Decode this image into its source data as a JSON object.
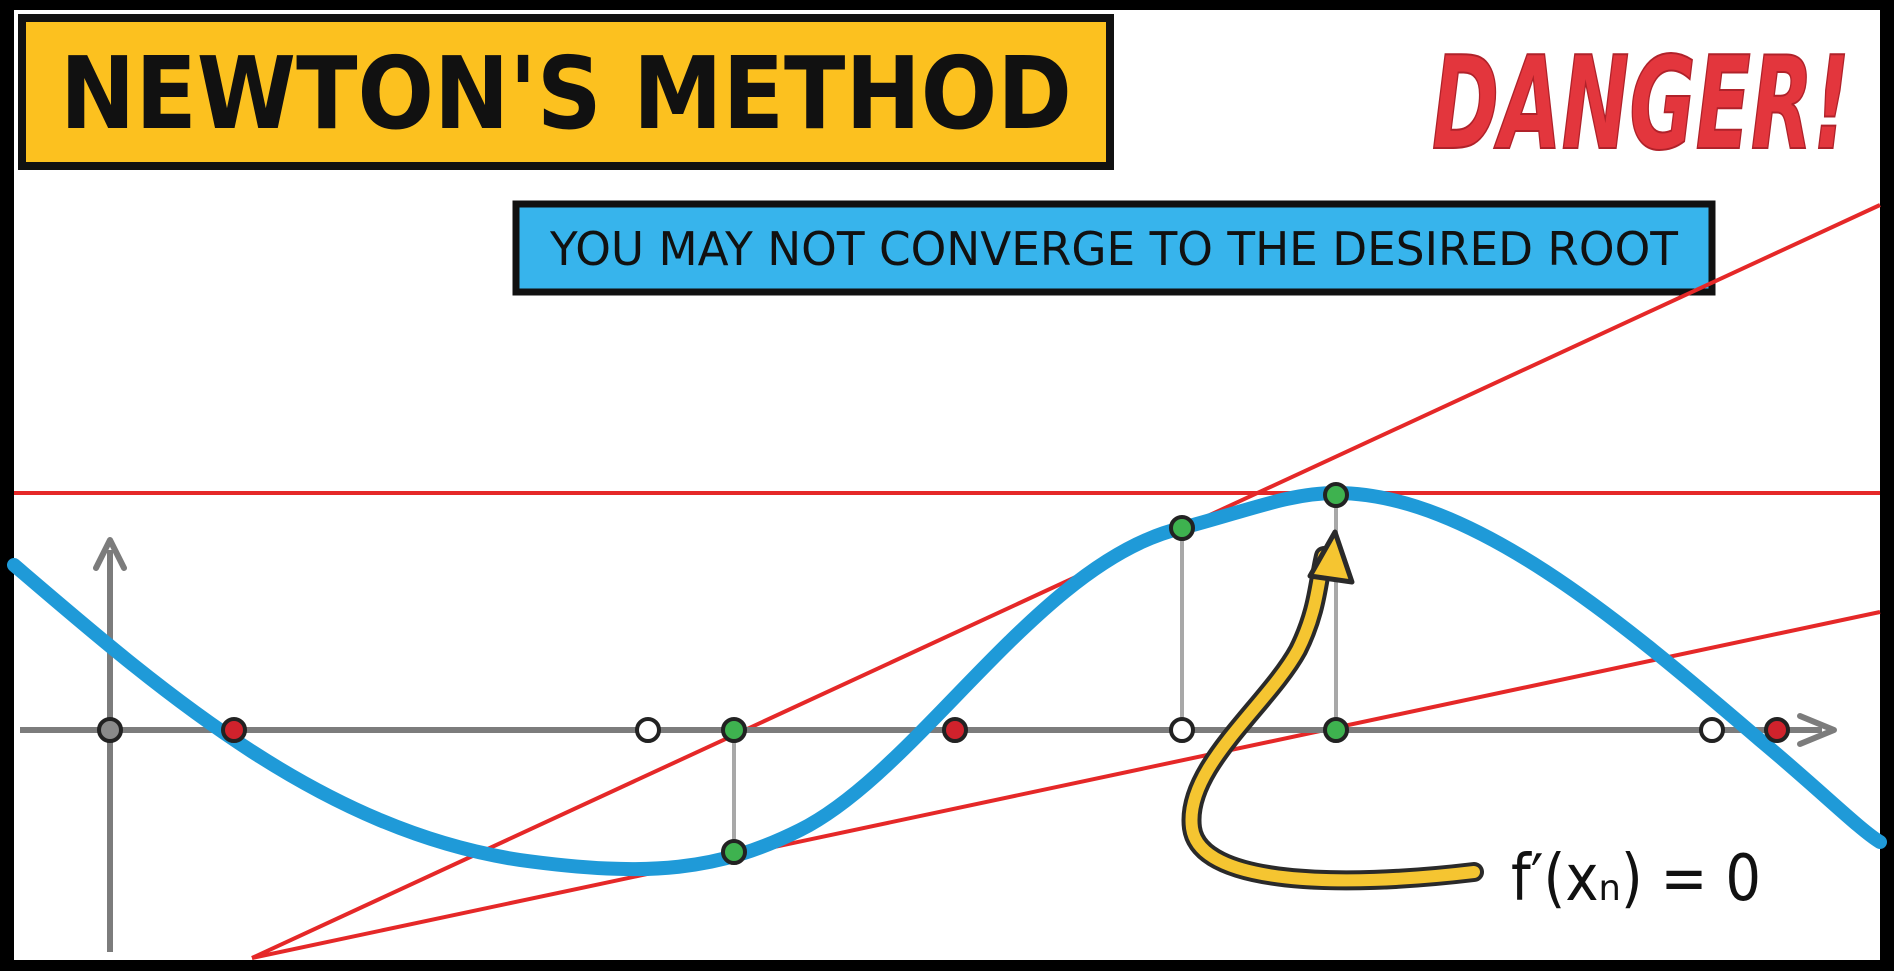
{
  "title": "NEWTON'S METHOD",
  "warning": "DANGER!",
  "subtitle": "YOU MAY NOT CONVERGE TO THE DESIRED ROOT",
  "annotation": "f′(xₙ) = 0",
  "colors": {
    "title_bg": "#fcc11f",
    "subtitle_bg": "#37b4ec",
    "danger": "#e3363d",
    "curve": "#1f9ad8",
    "tangent": "#e52828",
    "axis": "#7c7c7c",
    "point_green": "#3eb24f",
    "point_red": "#d0222c",
    "point_gray": "#8a8a8a",
    "point_white": "#ffffff",
    "arrow": "#f5c531"
  },
  "icons": {
    "arrow": "curved-pointer-arrow"
  }
}
